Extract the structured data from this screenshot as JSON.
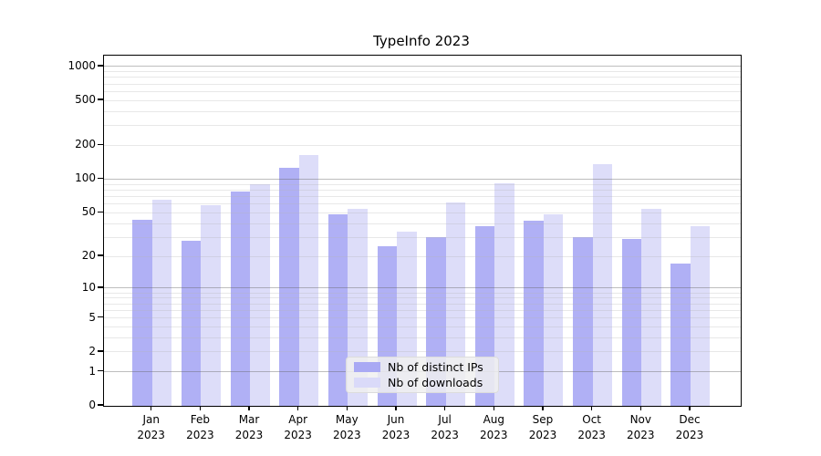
{
  "title": "TypeInfo 2023",
  "chart_data": {
    "type": "bar",
    "title": "TypeInfo 2023",
    "categories": [
      "Jan",
      "Feb",
      "Mar",
      "Apr",
      "May",
      "Jun",
      "Jul",
      "Aug",
      "Sep",
      "Oct",
      "Nov",
      "Dec"
    ],
    "category_year": "2023",
    "series": [
      {
        "name": "Nb of distinct IPs",
        "values": [
          43,
          28,
          78,
          126,
          48,
          25,
          30,
          38,
          42,
          30,
          29,
          17
        ]
      },
      {
        "name": "Nb of downloads",
        "values": [
          66,
          58,
          90,
          165,
          54,
          34,
          62,
          92,
          48,
          137,
          54,
          38
        ]
      }
    ],
    "xlabel": "",
    "ylabel": "",
    "yscale": "log-like (position ~ log10(value+1))",
    "y_ticks": [
      0,
      1,
      2,
      5,
      10,
      20,
      50,
      100,
      200,
      500,
      1000
    ],
    "ylim": [
      0,
      1230
    ],
    "grid": "horizontal major (powers of 10, gray) + minor (2-9 per decade, faint)",
    "legend_position": "inside bottom-center"
  },
  "legend": {
    "items": [
      {
        "label": "Nb of distinct IPs"
      },
      {
        "label": "Nb of downloads"
      }
    ]
  },
  "colors": {
    "bar_distinct_ips": "#a9a9f4",
    "bar_downloads": "#dadaf9",
    "grid_major": "#646464",
    "grid_minor": "#b4b4b4",
    "spine": "#000000",
    "text": "#000000",
    "legend_bg": "#f0f0f0"
  }
}
